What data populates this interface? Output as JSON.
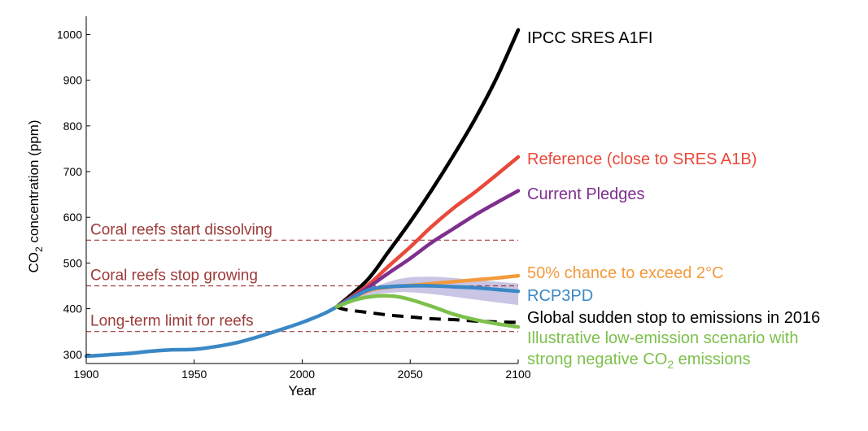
{
  "chart_data": {
    "type": "line",
    "xlabel": "Year",
    "ylabel": "CO",
    "ylabel_sub": "2",
    "ylabel_rest": " concentration (ppm)",
    "xlim": [
      1900,
      2100
    ],
    "ylim": [
      280,
      1040
    ],
    "x_ticks": [
      1900,
      1950,
      2000,
      2050,
      2100
    ],
    "y_ticks": [
      300,
      400,
      500,
      600,
      700,
      800,
      900,
      1000
    ],
    "grid": false,
    "thresholds": [
      {
        "label": "Coral reefs start dissolving",
        "value": 550,
        "color": "#9e3a3a"
      },
      {
        "label": "Coral reefs stop growing",
        "value": 450,
        "color": "#9e3a3a"
      },
      {
        "label": "Long-term limit for reefs",
        "value": 350,
        "color": "#9e3a3a"
      }
    ],
    "uncertainty_band": {
      "color": "#b7b2dc",
      "upper": [
        [
          2016,
          404
        ],
        [
          2030,
          440
        ],
        [
          2045,
          465
        ],
        [
          2060,
          470
        ],
        [
          2080,
          463
        ],
        [
          2100,
          455
        ]
      ],
      "lower": [
        [
          2100,
          408
        ],
        [
          2080,
          420
        ],
        [
          2060,
          432
        ],
        [
          2045,
          436
        ],
        [
          2030,
          428
        ],
        [
          2016,
          404
        ]
      ]
    },
    "series": [
      {
        "color": "#3a88c6",
        "dashed": false,
        "points": [
          [
            1900,
            296
          ],
          [
            1910,
            299
          ],
          [
            1920,
            302
          ],
          [
            1930,
            307
          ],
          [
            1940,
            310
          ],
          [
            1950,
            311
          ],
          [
            1960,
            317
          ],
          [
            1970,
            326
          ],
          [
            1980,
            339
          ],
          [
            1990,
            354
          ],
          [
            2000,
            370
          ],
          [
            2010,
            389
          ],
          [
            2016,
            404
          ]
        ]
      },
      {
        "name": "IPCC SRES A1FI",
        "color": "#000000",
        "dashed": false,
        "points": [
          [
            2016,
            404
          ],
          [
            2030,
            462
          ],
          [
            2040,
            525
          ],
          [
            2050,
            590
          ],
          [
            2060,
            660
          ],
          [
            2070,
            735
          ],
          [
            2080,
            815
          ],
          [
            2090,
            905
          ],
          [
            2100,
            1010
          ]
        ]
      },
      {
        "name": "Reference (close to SRES A1B)",
        "color": "#e8493a",
        "dashed": false,
        "points": [
          [
            2016,
            404
          ],
          [
            2030,
            450
          ],
          [
            2040,
            493
          ],
          [
            2050,
            535
          ],
          [
            2060,
            580
          ],
          [
            2070,
            620
          ],
          [
            2080,
            655
          ],
          [
            2090,
            693
          ],
          [
            2100,
            732
          ]
        ]
      },
      {
        "name": "Current Pledges",
        "color": "#7e2f8e",
        "dashed": false,
        "points": [
          [
            2016,
            404
          ],
          [
            2030,
            445
          ],
          [
            2040,
            478
          ],
          [
            2050,
            510
          ],
          [
            2060,
            545
          ],
          [
            2070,
            575
          ],
          [
            2080,
            605
          ],
          [
            2090,
            632
          ],
          [
            2100,
            658
          ]
        ]
      },
      {
        "name": "50% chance to exceed 2°C",
        "color": "#f39a3c",
        "dashed": false,
        "points": [
          [
            2016,
            404
          ],
          [
            2030,
            438
          ],
          [
            2040,
            447
          ],
          [
            2050,
            451
          ],
          [
            2060,
            455
          ],
          [
            2070,
            459
          ],
          [
            2080,
            463
          ],
          [
            2090,
            467
          ],
          [
            2100,
            472
          ]
        ]
      },
      {
        "name": "RCP3PD",
        "color": "#3a88c6",
        "dashed": false,
        "points": [
          [
            2016,
            404
          ],
          [
            2030,
            440
          ],
          [
            2040,
            448
          ],
          [
            2050,
            450
          ],
          [
            2060,
            450
          ],
          [
            2070,
            448
          ],
          [
            2080,
            446
          ],
          [
            2090,
            442
          ],
          [
            2100,
            438
          ]
        ]
      },
      {
        "name": "Global sudden stop to emissions in 2016",
        "color": "#000000",
        "dashed": true,
        "points": [
          [
            2016,
            404
          ],
          [
            2020,
            398
          ],
          [
            2030,
            392
          ],
          [
            2040,
            386
          ],
          [
            2050,
            382
          ],
          [
            2060,
            378
          ],
          [
            2070,
            376
          ],
          [
            2080,
            373
          ],
          [
            2090,
            371
          ],
          [
            2100,
            370
          ]
        ]
      },
      {
        "name": "Illustrative low-emission scenario with",
        "name2": "strong negative CO",
        "name2_sub": "2",
        "name2_rest": " emissions",
        "color": "#7dc04b",
        "dashed": false,
        "points": [
          [
            2016,
            404
          ],
          [
            2025,
            420
          ],
          [
            2035,
            428
          ],
          [
            2043,
            427
          ],
          [
            2050,
            420
          ],
          [
            2060,
            405
          ],
          [
            2070,
            388
          ],
          [
            2080,
            376
          ],
          [
            2090,
            367
          ],
          [
            2100,
            360
          ]
        ]
      }
    ]
  }
}
